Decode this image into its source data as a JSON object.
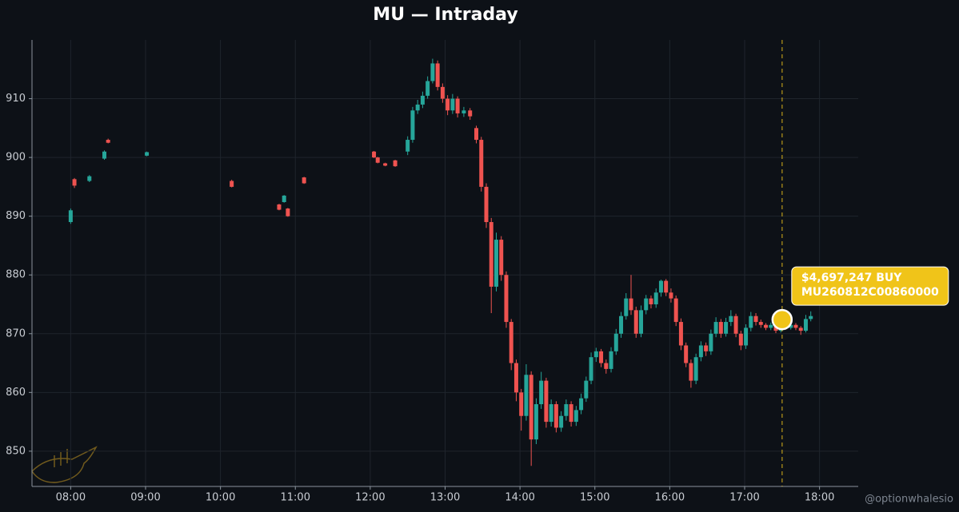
{
  "chart_data": {
    "type": "candlestick",
    "title": "MU — Intraday",
    "up_color": "#26a69a",
    "down_color": "#ef5350",
    "grid": true,
    "xlim": [
      "07:29",
      "18:31"
    ],
    "ylim": [
      844,
      920
    ],
    "xticks": [
      "08:00",
      "09:00",
      "10:00",
      "11:00",
      "12:00",
      "13:00",
      "14:00",
      "15:00",
      "16:00",
      "17:00",
      "18:00"
    ],
    "yticks": [
      850,
      860,
      870,
      880,
      890,
      900,
      910
    ],
    "x": [
      "08:00",
      "08:03",
      "08:15",
      "08:27",
      "08:30",
      "09:01",
      "10:09",
      "10:47",
      "10:51",
      "10:54",
      "11:07",
      "12:03",
      "12:06",
      "12:12",
      "12:20",
      "12:30",
      "12:34",
      "12:38",
      "12:42",
      "12:46",
      "12:50",
      "12:54",
      "12:58",
      "13:02",
      "13:06",
      "13:10",
      "13:15",
      "13:20",
      "13:25",
      "13:29",
      "13:33",
      "13:37",
      "13:41",
      "13:45",
      "13:49",
      "13:53",
      "13:57",
      "14:01",
      "14:05",
      "14:09",
      "14:13",
      "14:17",
      "14:21",
      "14:25",
      "14:29",
      "14:33",
      "14:37",
      "14:41",
      "14:45",
      "14:49",
      "14:53",
      "14:57",
      "15:01",
      "15:05",
      "15:09",
      "15:13",
      "15:17",
      "15:21",
      "15:25",
      "15:29",
      "15:33",
      "15:37",
      "15:41",
      "15:45",
      "15:49",
      "15:53",
      "15:57",
      "16:01",
      "16:05",
      "16:09",
      "16:13",
      "16:17",
      "16:21",
      "16:25",
      "16:29",
      "16:33",
      "16:37",
      "16:41",
      "16:45",
      "16:49",
      "16:53",
      "16:57",
      "17:01",
      "17:05",
      "17:09",
      "17:13",
      "17:17",
      "17:21",
      "17:25",
      "17:29",
      "17:33",
      "17:37",
      "17:41",
      "17:45",
      "17:49",
      "17:53"
    ],
    "open": [
      889,
      896.3,
      896,
      899.8,
      903,
      900.3,
      896,
      892,
      892.4,
      891.3,
      896.6,
      901,
      900,
      899,
      899.5,
      901,
      903,
      908,
      909,
      910.5,
      913,
      916,
      912,
      910,
      908,
      910,
      907.5,
      908,
      905,
      903,
      895,
      889,
      878,
      886,
      880,
      872,
      865,
      860,
      856,
      863,
      852,
      858,
      862,
      855,
      858,
      854,
      856,
      858,
      855,
      857,
      859,
      862,
      866,
      867,
      865,
      864,
      867,
      870,
      873,
      876,
      874,
      870,
      874,
      876,
      875,
      877,
      879,
      877,
      876,
      872,
      868,
      865,
      862,
      866,
      868,
      867,
      870,
      872,
      870,
      872,
      873,
      870,
      868,
      871,
      873,
      872,
      871.5,
      871,
      871.5,
      870.5,
      872,
      871,
      871.5,
      871,
      870.5,
      872.5
    ],
    "high": [
      891.3,
      896.5,
      897,
      901.2,
      903.2,
      901,
      896.2,
      892.1,
      893.6,
      891.4,
      896.7,
      901.1,
      900.1,
      899.1,
      899.6,
      903.6,
      908.6,
      909.8,
      911.2,
      913.8,
      916.8,
      916.5,
      912.6,
      910.6,
      910.8,
      910.4,
      908.6,
      908.4,
      905.4,
      903.5,
      895.6,
      889.7,
      887.2,
      886.6,
      880.6,
      872.5,
      865.6,
      860.6,
      864.8,
      863.6,
      859,
      863.5,
      862.5,
      858.8,
      858.5,
      856.8,
      858.8,
      858.5,
      857.7,
      859.8,
      862.7,
      866.8,
      867.6,
      867.4,
      865.6,
      867.7,
      870.8,
      873.7,
      876.9,
      880,
      874.6,
      874.8,
      876.6,
      876.5,
      877.7,
      879.2,
      879.3,
      877.7,
      876.5,
      872.6,
      868.5,
      865.6,
      866.6,
      868.7,
      868.5,
      870.7,
      872.8,
      872.5,
      872.7,
      874,
      873.4,
      870.5,
      871.6,
      873.7,
      873.5,
      872.4,
      871.8,
      871.9,
      871.8,
      872.5,
      872.3,
      871.9,
      871.8,
      871.3,
      873.2,
      873.8
    ],
    "low": [
      888.7,
      894.8,
      895.8,
      899.6,
      902.4,
      900.2,
      894.9,
      891,
      892.3,
      889.9,
      895.5,
      899.9,
      899,
      898.5,
      898.4,
      900.4,
      902.5,
      907.4,
      908.4,
      910,
      912.6,
      911.4,
      909.3,
      907.2,
      907.4,
      906.8,
      906.9,
      906.4,
      902.4,
      894.2,
      888,
      873.5,
      877.2,
      879,
      871,
      863.8,
      858.5,
      853.5,
      855.2,
      847.5,
      851.2,
      857.2,
      854,
      854.2,
      853.2,
      853.3,
      855.2,
      854.2,
      854.3,
      856.3,
      858.4,
      861.4,
      865.2,
      864.3,
      863.2,
      863.4,
      866.4,
      869.3,
      872.4,
      873.2,
      869.3,
      869.4,
      873.3,
      874.3,
      874.4,
      876.3,
      876.4,
      875.3,
      871.3,
      867.2,
      864.3,
      860.8,
      861.4,
      865.3,
      866.2,
      866.4,
      869.4,
      869.3,
      869.5,
      871.3,
      869.4,
      867.2,
      867.4,
      870.4,
      871.4,
      871,
      870.6,
      870.6,
      870.1,
      870.2,
      870.7,
      870.7,
      870.6,
      869.8,
      870.2,
      872.1
    ],
    "close": [
      891,
      895.2,
      896.8,
      901,
      902.5,
      900.9,
      895,
      891.1,
      893.5,
      890,
      895.6,
      900,
      899.1,
      898.6,
      898.5,
      903,
      908,
      909,
      910.5,
      913,
      916,
      912,
      910,
      908,
      910,
      907.5,
      908,
      907,
      903,
      895,
      889,
      878,
      886,
      880,
      872,
      865,
      860,
      856,
      863,
      852,
      858,
      862,
      855,
      858,
      854,
      856,
      858,
      855,
      857,
      859,
      862,
      866,
      867,
      865,
      864,
      867,
      870,
      873,
      876,
      874,
      870,
      874,
      876,
      875,
      877,
      879,
      877,
      876,
      872,
      868,
      865,
      862,
      866,
      868,
      867,
      870,
      872,
      870,
      872,
      873,
      870,
      868,
      871,
      873,
      872,
      871.5,
      871,
      871.5,
      870.5,
      872,
      871,
      871.5,
      871,
      870.5,
      872.5,
      873
    ],
    "annotation": {
      "x": "17:30",
      "y": 872.4,
      "color": "#f0c419",
      "lines": [
        "$4,697,247 BUY",
        "MU260812C00860000"
      ]
    },
    "watermark": "@optionwhalesio"
  }
}
